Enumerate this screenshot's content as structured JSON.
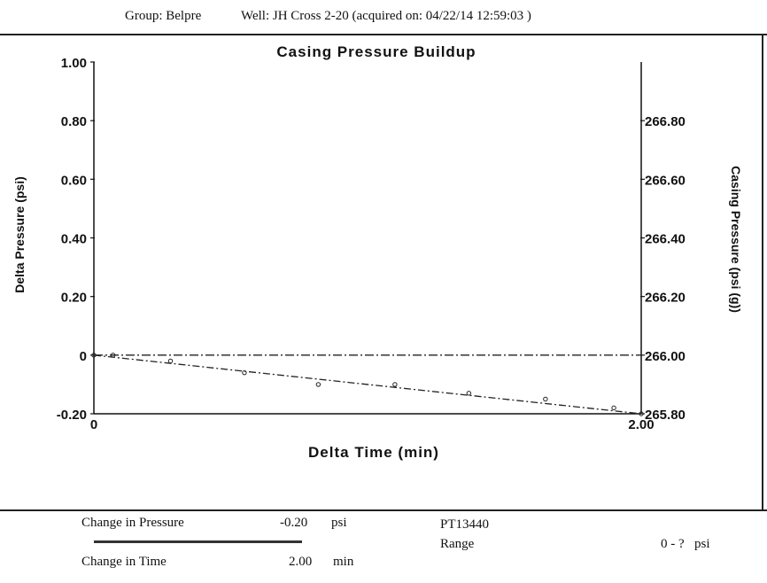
{
  "header": {
    "group": "Group: Belpre",
    "well": "Well: JH Cross 2-20 (acquired on: 04/22/14 12:59:03 )"
  },
  "chart_data": {
    "type": "scatter",
    "title": "Casing Pressure Buildup",
    "xlabel": "Delta Time (min)",
    "ylabel": "Delta Pressure (psi)",
    "y2label": "Casing Pressure (psi (g))",
    "xlim": [
      0,
      2.0
    ],
    "ylim": [
      -0.2,
      1.0
    ],
    "y2lim": [
      265.8,
      267.0
    ],
    "x_ticks": [
      "0",
      "2.00"
    ],
    "y_ticks": [
      {
        "value": 1.0,
        "label": "1.00"
      },
      {
        "value": 0.8,
        "label": "0.80"
      },
      {
        "value": 0.6,
        "label": "0.60"
      },
      {
        "value": 0.4,
        "label": "0.40"
      },
      {
        "value": 0.2,
        "label": "0.20"
      },
      {
        "value": 0.0,
        "label": "0"
      },
      {
        "value": -0.2,
        "label": "-0.20"
      }
    ],
    "y2_ticks": [
      {
        "value": 266.8,
        "label": "266.80"
      },
      {
        "value": 266.6,
        "label": "266.60"
      },
      {
        "value": 266.4,
        "label": "266.40"
      },
      {
        "value": 266.2,
        "label": "266.20"
      },
      {
        "value": 266.0,
        "label": "266.00"
      },
      {
        "value": 265.8,
        "label": "265.80"
      }
    ],
    "series": [
      {
        "points": [
          {
            "x": 0.0,
            "y": 0.0
          },
          {
            "x": 0.07,
            "y": 0.0
          },
          {
            "x": 0.28,
            "y": -0.02
          },
          {
            "x": 0.55,
            "y": -0.06
          },
          {
            "x": 0.82,
            "y": -0.1
          },
          {
            "x": 1.1,
            "y": -0.1
          },
          {
            "x": 1.37,
            "y": -0.13
          },
          {
            "x": 1.65,
            "y": -0.15
          },
          {
            "x": 1.9,
            "y": -0.18
          },
          {
            "x": 2.0,
            "y": -0.2
          }
        ]
      }
    ],
    "trend_line": {
      "x": [
        0.0,
        2.0
      ],
      "y": [
        0.0,
        -0.2
      ]
    },
    "baseline": {
      "y": 0.0
    },
    "grid": false
  },
  "footer": {
    "change_pressure_label": "Change in Pressure",
    "change_pressure_value": "-0.20",
    "change_pressure_unit": "psi",
    "change_time_label": "Change in Time",
    "change_time_value": "2.00",
    "change_time_unit": "min",
    "sensor_id": "PT13440",
    "range_label": "Range",
    "range_value": "0 - ?",
    "range_unit": "psi"
  }
}
